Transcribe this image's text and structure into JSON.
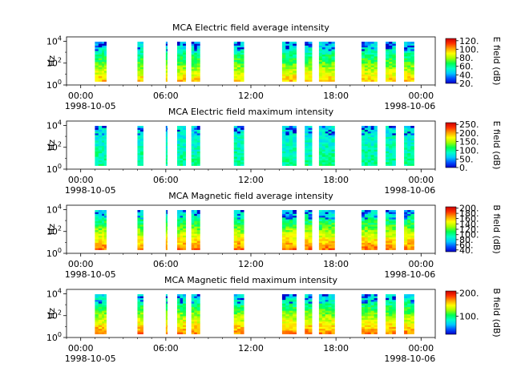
{
  "chart_data": [
    {
      "type": "heatmap",
      "title": "MCA  Electric field average intensity",
      "ylabel": "Hz",
      "colorbar_label": "E field (dB)",
      "colorbar_ticks": [
        "120.",
        "100.",
        "80.",
        "60.",
        "40.",
        "20."
      ],
      "colorbar_range": [
        20,
        125
      ],
      "y_ticks": [
        "10^4",
        "10^2",
        "10^0"
      ],
      "ylim": [
        1,
        30000
      ],
      "yscale": "log",
      "x_ticks": [
        "00:00",
        "06:00",
        "12:00",
        "18:00",
        "00:00"
      ],
      "x_start_date": "1998-10-05",
      "x_end_date": "1998-10-06",
      "xlim": [
        "1998-10-04T23:00",
        "1998-10-06T01:00"
      ],
      "time_blocks_hours": [
        [
          1.0,
          1.5
        ],
        [
          1.5,
          1.8
        ],
        [
          4.0,
          4.4
        ],
        [
          6.0,
          6.1
        ],
        [
          6.8,
          7.4
        ],
        [
          7.8,
          8.4
        ],
        [
          10.8,
          11.5
        ],
        [
          14.2,
          15.2
        ],
        [
          15.8,
          16.3
        ],
        [
          16.8,
          17.9
        ],
        [
          19.8,
          20.9
        ],
        [
          21.5,
          22.2
        ],
        [
          22.8,
          23.5
        ]
      ],
      "intensity_pattern": "high (orange/yellow) at low frequency, decreasing (green to cyan/blue) at high frequency"
    },
    {
      "type": "heatmap",
      "title": "MCA  Electric field maximum intensity",
      "ylabel": "Hz",
      "colorbar_label": "E field (dB)",
      "colorbar_ticks": [
        "250.",
        "200.",
        "150.",
        "100.",
        "50.",
        "0."
      ],
      "colorbar_range": [
        0,
        260
      ],
      "y_ticks": [
        "10^4",
        "10^2",
        "10^0"
      ],
      "ylim": [
        1,
        30000
      ],
      "yscale": "log",
      "x_ticks": [
        "00:00",
        "06:00",
        "12:00",
        "18:00",
        "00:00"
      ],
      "x_start_date": "1998-10-05",
      "x_end_date": "1998-10-06",
      "xlim": [
        "1998-10-04T23:00",
        "1998-10-06T01:00"
      ],
      "time_blocks_hours": [
        [
          1.0,
          1.5
        ],
        [
          1.5,
          1.8
        ],
        [
          4.0,
          4.4
        ],
        [
          6.0,
          6.1
        ],
        [
          6.8,
          7.4
        ],
        [
          7.8,
          8.4
        ],
        [
          10.8,
          11.5
        ],
        [
          14.2,
          15.2
        ],
        [
          15.8,
          16.3
        ],
        [
          16.8,
          17.9
        ],
        [
          19.8,
          20.9
        ],
        [
          21.5,
          22.2
        ],
        [
          22.8,
          23.5
        ]
      ],
      "intensity_pattern": "mostly cyan/teal, blue patches at high frequency"
    },
    {
      "type": "heatmap",
      "title": "MCA  Magnetic field average intensity",
      "ylabel": "Hz",
      "colorbar_label": "B field (dB)",
      "colorbar_ticks": [
        "200.",
        "180.",
        "160.",
        "140.",
        "120.",
        "100.",
        "80.",
        "60.",
        "40."
      ],
      "colorbar_range": [
        40,
        205
      ],
      "y_ticks": [
        "10^4",
        "10^2",
        "10^0"
      ],
      "ylim": [
        1,
        30000
      ],
      "yscale": "log",
      "x_ticks": [
        "00:00",
        "06:00",
        "12:00",
        "18:00",
        "00:00"
      ],
      "x_start_date": "1998-10-05",
      "x_end_date": "1998-10-06",
      "xlim": [
        "1998-10-04T23:00",
        "1998-10-06T01:00"
      ],
      "time_blocks_hours": [
        [
          1.0,
          1.5
        ],
        [
          1.5,
          1.8
        ],
        [
          4.0,
          4.4
        ],
        [
          6.0,
          6.1
        ],
        [
          6.8,
          7.4
        ],
        [
          7.8,
          8.4
        ],
        [
          10.8,
          11.5
        ],
        [
          14.2,
          15.2
        ],
        [
          15.8,
          16.3
        ],
        [
          16.8,
          17.9
        ],
        [
          19.8,
          20.9
        ],
        [
          21.5,
          22.2
        ],
        [
          22.8,
          23.5
        ]
      ],
      "intensity_pattern": "orange/red at lowest frequency, yellow, green, cyan at top"
    },
    {
      "type": "heatmap",
      "title": "MCA  Magnetic field maximum intensity",
      "ylabel": "Hz",
      "colorbar_label": "B field (dB)",
      "colorbar_ticks": [
        "200.",
        "100."
      ],
      "colorbar_range": [
        20,
        210
      ],
      "y_ticks": [
        "10^4",
        "10^2",
        "10^0"
      ],
      "ylim": [
        1,
        30000
      ],
      "yscale": "log",
      "x_ticks": [
        "00:00",
        "06:00",
        "12:00",
        "18:00",
        "00:00"
      ],
      "x_start_date": "1998-10-05",
      "x_end_date": "1998-10-06",
      "xlim": [
        "1998-10-04T23:00",
        "1998-10-06T01:00"
      ],
      "time_blocks_hours": [
        [
          1.0,
          1.5
        ],
        [
          1.5,
          1.8
        ],
        [
          4.0,
          4.4
        ],
        [
          6.0,
          6.1
        ],
        [
          6.8,
          7.4
        ],
        [
          7.8,
          8.4
        ],
        [
          10.8,
          11.5
        ],
        [
          14.2,
          15.2
        ],
        [
          15.8,
          16.3
        ],
        [
          16.8,
          17.9
        ],
        [
          19.8,
          20.9
        ],
        [
          21.5,
          22.2
        ],
        [
          22.8,
          23.5
        ]
      ],
      "intensity_pattern": "orange/red at lowest frequency, yellow, green, cyan at top"
    }
  ],
  "colormap": [
    "#0000c8",
    "#0050ff",
    "#00c8ff",
    "#00ffc8",
    "#00ff50",
    "#a0ff00",
    "#ffff00",
    "#ffa000",
    "#ff3000",
    "#c80000"
  ]
}
